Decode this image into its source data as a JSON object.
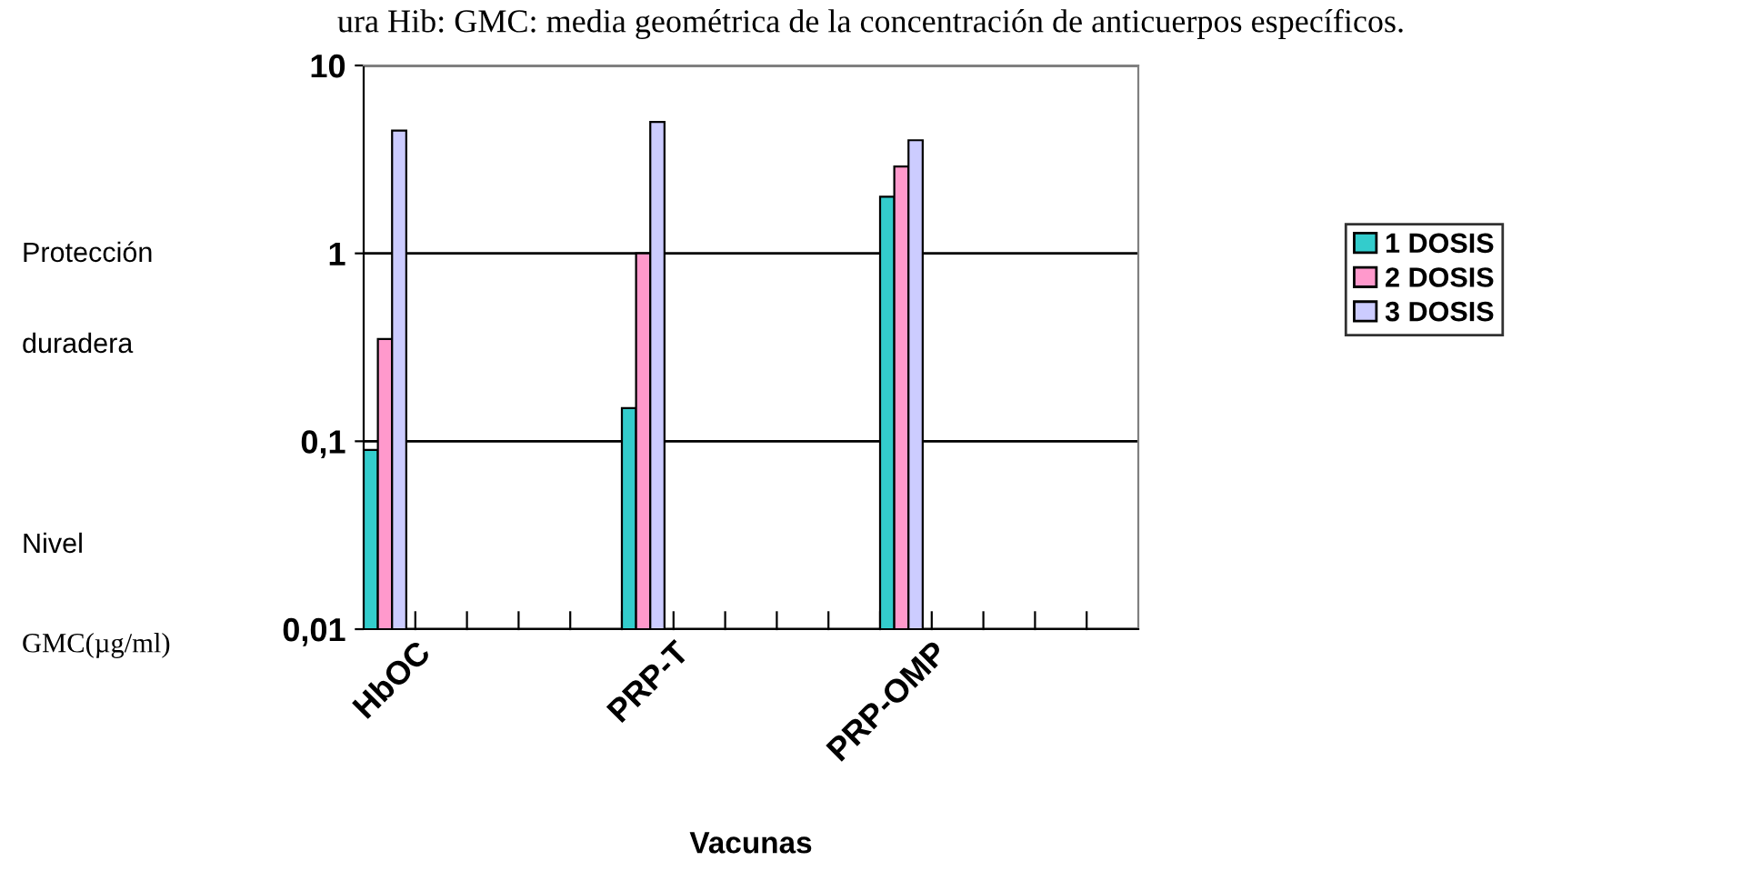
{
  "chart_data": {
    "type": "bar",
    "title": "ura Hib: GMC: media geométrica de la concentración de anticuerpos específicos.",
    "xlabel": "Vacunas",
    "categories": [
      "HbOC",
      "PRP-T",
      "PRP-OMP"
    ],
    "series": [
      {
        "name": "1 DOSIS",
        "color": "#33cccc",
        "values": [
          0.09,
          0.15,
          2.0
        ]
      },
      {
        "name": "2 DOSIS",
        "color": "#ff99cc",
        "values": [
          0.35,
          1.0,
          2.9
        ]
      },
      {
        "name": "3 DOSIS",
        "color": "#ccccff",
        "values": [
          4.5,
          5.0,
          4.0
        ]
      }
    ],
    "log": true,
    "ylim": [
      0.01,
      10
    ],
    "yticks": [
      {
        "value": 10,
        "label": "10"
      },
      {
        "value": 1,
        "label": "1"
      },
      {
        "value": 0.1,
        "label": "0,1"
      },
      {
        "value": 0.01,
        "label": "0,01"
      }
    ],
    "grid": "y",
    "legend": "right",
    "annotations": [
      "Protección",
      "duradera",
      "Nivel",
      "GMC(µg/ml)"
    ]
  }
}
